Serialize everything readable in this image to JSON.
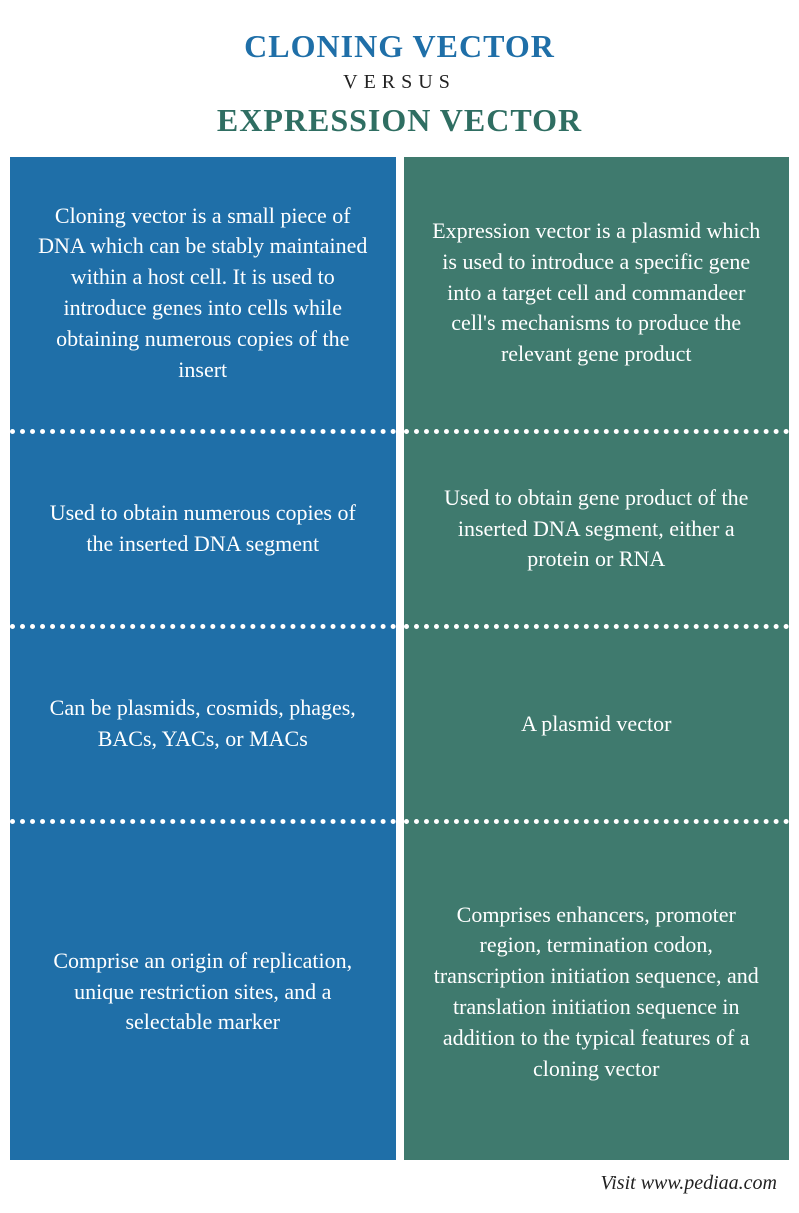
{
  "header": {
    "title_left": "CLONING VECTOR",
    "versus": "VERSUS",
    "title_right": "EXPRESSION VECTOR",
    "title_left_color": "#1f6fa8",
    "title_right_color": "#2f6e62",
    "versus_color": "#222222",
    "title_fontsize": 32,
    "versus_fontsize": 20
  },
  "columns": {
    "left": {
      "bg": "#1f6fa8",
      "cells": [
        "Cloning vector is a small piece of DNA which can be stably maintained within a host cell. It is used to introduce genes into cells while obtaining numerous copies of the insert",
        "Used to obtain numerous copies of the inserted DNA segment",
        "Can be plasmids, cosmids, phages, BACs, YACs, or MACs",
        "Comprise an origin of replication, unique restriction sites, and a selectable marker"
      ]
    },
    "right": {
      "bg": "#3f7a6e",
      "cells": [
        "Expression vector is a plasmid which is used to introduce a specific gene into a target cell and commandeer cell's mechanisms to produce the relevant gene product",
        "Used to obtain gene product of the inserted DNA segment, either a protein or RNA",
        "A plasmid vector",
        "Comprises enhancers, promoter region, termination codon, transcription initiation sequence, and translation initiation sequence in addition to the typical features of a cloning vector"
      ]
    }
  },
  "style": {
    "cell_text_color": "#ffffff",
    "cell_fontsize": 22,
    "divider_color": "#ffffff",
    "background": "#ffffff",
    "row_flex": [
      1.25,
      0.8,
      0.8,
      1.6
    ]
  },
  "footer": {
    "text": "Visit www.pediaa.com",
    "color": "#222222",
    "fontsize": 20
  }
}
